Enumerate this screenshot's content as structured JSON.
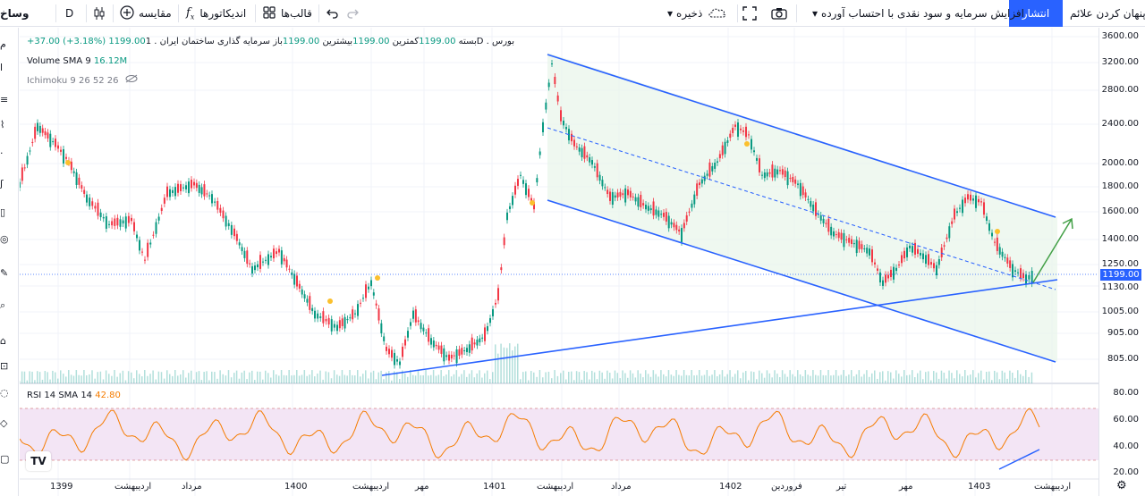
{
  "toolbar": {
    "hide_indicators": "پنهان کردن علائم",
    "publish": "انتشار",
    "symbol_title": "افزایش سرمایه و سود نقدی با احتساب آورده",
    "save": "ذخیره",
    "templates": "قالب‌ها",
    "indicators": "اندیکاتورها",
    "compare": "مقایسه",
    "interval": "D",
    "symbol": "وساخ"
  },
  "legend": {
    "symbol_line": "سرمایه گذاری ساختمان ایران . 1D . بورس",
    "open_label": "باز",
    "open_value": "1199.00",
    "high_label": "بیشترین",
    "high_value": "1199.00",
    "low_label": "کمترین",
    "low_value": "1199.00",
    "close_label": "بسته",
    "close_value": "1199.00",
    "change": "+37.00 (+3.18%)",
    "volume_label": "Volume SMA 9",
    "volume_value": "16.12M",
    "ichimoku_label": "Ichimoku 9 26 52 26",
    "rsi_label": "RSI 14 SMA 14",
    "rsi_value": "42.80"
  },
  "price_axis": [
    "3600.00",
    "3200.00",
    "2800.00",
    "2400.00",
    "2000.00",
    "1800.00",
    "1600.00",
    "1400.00",
    "1250.00",
    "1130.00",
    "1005.00",
    "905.00",
    "805.00"
  ],
  "current_price": "1199.00",
  "rsi_axis": [
    "80.00",
    "60.00",
    "40.00",
    "20.00"
  ],
  "time_axis": [
    "1399",
    "اردیبهشت",
    "مرداد",
    "1400",
    "اردیبهشت",
    "مهر",
    "1401",
    "اردیبهشت",
    "مرداد",
    "1402",
    "فروردین",
    "تیر",
    "مهر",
    "1403",
    "اردیبهشت"
  ],
  "colors": {
    "accent": "#2962ff",
    "up": "#089981",
    "down": "#f23645",
    "rsi": "#f57c00",
    "channel_fill": "#e8f5e9",
    "rsi_band": "#f3e5f5"
  }
}
